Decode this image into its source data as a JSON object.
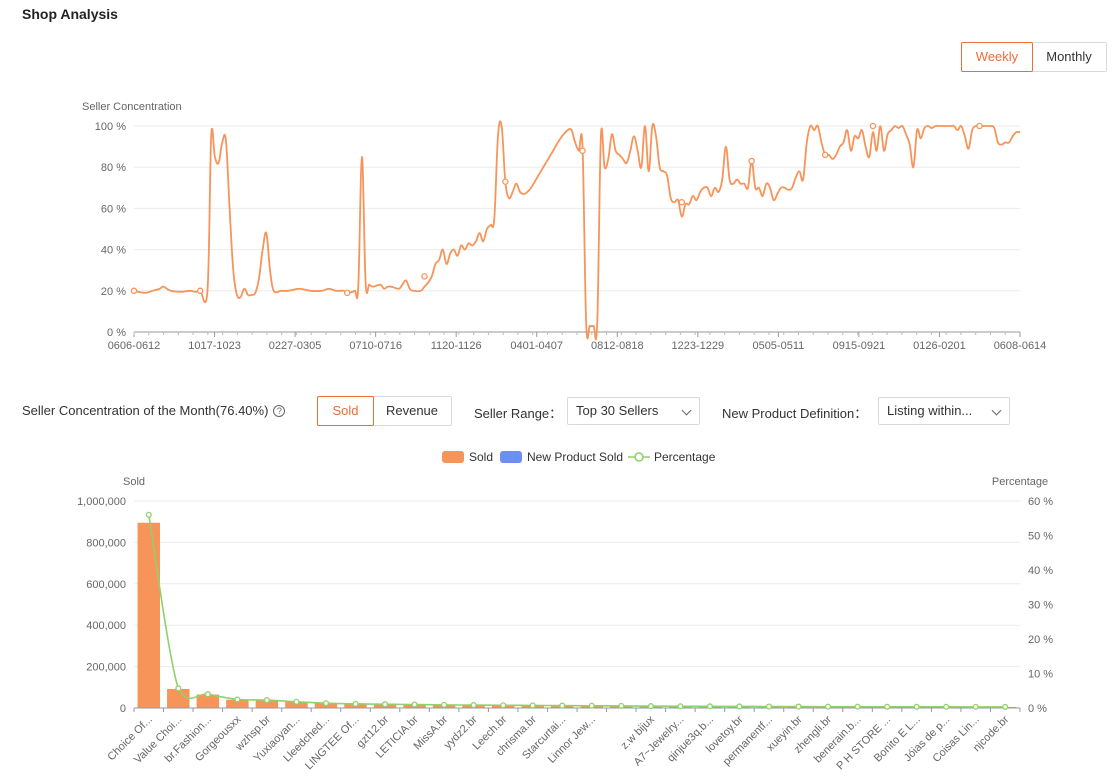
{
  "page": {
    "title": "Shop Analysis"
  },
  "period_toggle": {
    "weekly": "Weekly",
    "monthly": "Monthly",
    "selected": "Weekly"
  },
  "line_chart_block": {
    "chart_data": {
      "type": "line",
      "ylabel": "Seller Concentration",
      "ylim": [
        0,
        100
      ],
      "yticks": [
        "0 %",
        "20 %",
        "40 %",
        "60 %",
        "80 %",
        "100 %"
      ],
      "x_tick_labels": [
        "0606-0612",
        "1017-1023",
        "0227-0305",
        "0710-0716",
        "1120-1126",
        "0401-0407",
        "0812-0818",
        "1223-1229",
        "0505-0511",
        "0915-0921",
        "0126-0201",
        "0608-0614"
      ],
      "x_tick_positions": [
        0,
        19,
        38,
        57,
        76,
        95,
        114,
        133,
        152,
        171,
        190,
        209
      ],
      "x_count": 210,
      "color": "#f79459",
      "points": [
        [
          0,
          20
        ],
        [
          3,
          19
        ],
        [
          5,
          20
        ],
        [
          7,
          21
        ],
        [
          8,
          22
        ],
        [
          10,
          20
        ],
        [
          13,
          19.5
        ],
        [
          15,
          20
        ],
        [
          17,
          19.5
        ],
        [
          18,
          20
        ],
        [
          20,
          20.5
        ],
        [
          21,
          95
        ],
        [
          22,
          85
        ],
        [
          23,
          82
        ],
        [
          24,
          92
        ],
        [
          25,
          93
        ],
        [
          26,
          60
        ],
        [
          27,
          30
        ],
        [
          28,
          18
        ],
        [
          29,
          17
        ],
        [
          30,
          21
        ],
        [
          31,
          18
        ],
        [
          32,
          18
        ],
        [
          33,
          19
        ],
        [
          34,
          26
        ],
        [
          35,
          40
        ],
        [
          36,
          48
        ],
        [
          37,
          30
        ],
        [
          38,
          20
        ],
        [
          40,
          20
        ],
        [
          42,
          20
        ],
        [
          45,
          21
        ],
        [
          48,
          20
        ],
        [
          51,
          20
        ],
        [
          53,
          21
        ],
        [
          55,
          20
        ],
        [
          57,
          20
        ],
        [
          58,
          19
        ],
        [
          60,
          20
        ],
        [
          61,
          22
        ],
        [
          62,
          85
        ],
        [
          63,
          24
        ],
        [
          64,
          23
        ],
        [
          65,
          22
        ],
        [
          67,
          23
        ],
        [
          68,
          21
        ],
        [
          69,
          22
        ],
        [
          70,
          22
        ],
        [
          72,
          21
        ],
        [
          73,
          23
        ],
        [
          74,
          25
        ],
        [
          75,
          21
        ],
        [
          76,
          20
        ],
        [
          78,
          20
        ],
        [
          79,
          22
        ],
        [
          80,
          24
        ],
        [
          81,
          27
        ],
        [
          82,
          33
        ],
        [
          83,
          35
        ],
        [
          84,
          40
        ],
        [
          85,
          33
        ],
        [
          86,
          38
        ],
        [
          87,
          40
        ],
        [
          88,
          37
        ],
        [
          89,
          42
        ],
        [
          90,
          40
        ],
        [
          91,
          43
        ],
        [
          92,
          42
        ],
        [
          93,
          44
        ],
        [
          94,
          48
        ],
        [
          95,
          44
        ],
        [
          96,
          50
        ],
        [
          97,
          52
        ],
        [
          98,
          55
        ],
        [
          99,
          95
        ],
        [
          100,
          100
        ],
        [
          101,
          73
        ],
        [
          102,
          65
        ],
        [
          103,
          68
        ],
        [
          104,
          72
        ],
        [
          105,
          68
        ],
        [
          106,
          67
        ],
        [
          107,
          68
        ],
        [
          108,
          70
        ],
        [
          110,
          76
        ],
        [
          112,
          82
        ],
        [
          114,
          88
        ],
        [
          116,
          94
        ],
        [
          118,
          98
        ],
        [
          119,
          98
        ],
        [
          120,
          92
        ],
        [
          121,
          88
        ],
        [
          122,
          90
        ],
        [
          123,
          4
        ],
        [
          124,
          3
        ],
        [
          125,
          3
        ],
        [
          126,
          4
        ],
        [
          127,
          95
        ],
        [
          128,
          80
        ],
        [
          129,
          84
        ],
        [
          130,
          96
        ],
        [
          131,
          88
        ],
        [
          132,
          86
        ],
        [
          133,
          84
        ],
        [
          134,
          82
        ],
        [
          135,
          88
        ],
        [
          136,
          95
        ],
        [
          137,
          88
        ],
        [
          138,
          80
        ],
        [
          139,
          100
        ],
        [
          140,
          78
        ],
        [
          141,
          100
        ],
        [
          142,
          95
        ],
        [
          143,
          80
        ],
        [
          144,
          78
        ],
        [
          145,
          76
        ],
        [
          146,
          65
        ],
        [
          147,
          63
        ],
        [
          148,
          64
        ],
        [
          149,
          56
        ],
        [
          150,
          62
        ],
        [
          151,
          62
        ],
        [
          152,
          66
        ],
        [
          153,
          64
        ],
        [
          154,
          68
        ],
        [
          155,
          70
        ],
        [
          156,
          70
        ],
        [
          157,
          66
        ],
        [
          158,
          70
        ],
        [
          159,
          68
        ],
        [
          160,
          74
        ],
        [
          161,
          90
        ],
        [
          162,
          74
        ],
        [
          163,
          72
        ],
        [
          164,
          74
        ],
        [
          165,
          72
        ],
        [
          166,
          72
        ],
        [
          167,
          70
        ],
        [
          168,
          83
        ],
        [
          169,
          70
        ],
        [
          170,
          70
        ],
        [
          171,
          66
        ],
        [
          172,
          72
        ],
        [
          173,
          70
        ],
        [
          174,
          64
        ],
        [
          175,
          67
        ],
        [
          176,
          70
        ],
        [
          177,
          70
        ],
        [
          178,
          69
        ],
        [
          179,
          70
        ],
        [
          180,
          75
        ],
        [
          181,
          78
        ],
        [
          182,
          74
        ],
        [
          183,
          92
        ],
        [
          184,
          100
        ],
        [
          185,
          98
        ],
        [
          186,
          100
        ],
        [
          187,
          92
        ],
        [
          188,
          86
        ],
        [
          189,
          86
        ],
        [
          190,
          84
        ],
        [
          191,
          86
        ],
        [
          192,
          90
        ],
        [
          193,
          92
        ],
        [
          194,
          98
        ],
        [
          195,
          88
        ],
        [
          196,
          95
        ],
        [
          197,
          94
        ],
        [
          198,
          98
        ],
        [
          199,
          90
        ],
        [
          200,
          85
        ],
        [
          201,
          97
        ],
        [
          202,
          88
        ],
        [
          203,
          100
        ],
        [
          204,
          88
        ],
        [
          205,
          96
        ],
        [
          206,
          98
        ],
        [
          207,
          100
        ],
        [
          208,
          99
        ],
        [
          209,
          100
        ],
        [
          210,
          96
        ],
        [
          211,
          91
        ],
        [
          212,
          80
        ],
        [
          213,
          98
        ],
        [
          214,
          94
        ],
        [
          215,
          99
        ],
        [
          216,
          100
        ],
        [
          217,
          99
        ],
        [
          218,
          100
        ],
        [
          219,
          100
        ],
        [
          220,
          100
        ],
        [
          221,
          100
        ],
        [
          222,
          100
        ],
        [
          223,
          100
        ],
        [
          224,
          98
        ],
        [
          225,
          100
        ],
        [
          226,
          95
        ],
        [
          227,
          89
        ],
        [
          228,
          98
        ],
        [
          229,
          100
        ],
        [
          230,
          100
        ],
        [
          231,
          100
        ],
        [
          232,
          100
        ],
        [
          233,
          100
        ],
        [
          234,
          99
        ],
        [
          235,
          92
        ],
        [
          236,
          91
        ],
        [
          237,
          92
        ],
        [
          238,
          92
        ],
        [
          239,
          95
        ],
        [
          240,
          97
        ],
        [
          241,
          97
        ]
      ],
      "markers": [
        [
          0,
          20
        ],
        [
          18,
          20
        ],
        [
          58,
          19
        ],
        [
          79,
          27
        ],
        [
          101,
          73
        ],
        [
          122,
          88
        ],
        [
          149,
          63
        ],
        [
          168,
          83
        ],
        [
          188,
          86
        ],
        [
          201,
          100
        ],
        [
          230,
          100
        ]
      ]
    }
  },
  "controls": {
    "concentration_label": "Seller Concentration of the Month(76.40%)",
    "help_icon": "question-circle-icon",
    "metric_sold": "Sold",
    "metric_revenue": "Revenue",
    "metric_selected": "Sold",
    "range_label": "Seller Range：",
    "range_value": "Top 30 Sellers",
    "definition_label": "New Product Definition：",
    "definition_value": "Listing within..."
  },
  "bar_chart_block": {
    "chart_data": {
      "type": "bar",
      "ylabel": "Sold",
      "y2label": "Percentage",
      "ylim": [
        0,
        1000000
      ],
      "y2lim": [
        0,
        60
      ],
      "yticks": [
        "0",
        "200,000",
        "400,000",
        "600,000",
        "800,000",
        "1,000,000"
      ],
      "y2ticks": [
        "0 %",
        "10 %",
        "20 %",
        "30 %",
        "40 %",
        "50 %",
        "60 %"
      ],
      "legend": [
        {
          "name": "Sold",
          "color": "#f79459"
        },
        {
          "name": "New Product Sold",
          "color": "#6b8ff5"
        },
        {
          "name": "Percentage",
          "color": "#8fd16b"
        }
      ],
      "categories": [
        "Choice Of...",
        "Value Choi...",
        "br.Fashion...",
        "Gorgeousxx",
        "wzhsp.br",
        "Yuxiaoyan...",
        "Lleedched...",
        "LINGTEE Of...",
        "gzt12.br",
        "LETICIA.br",
        "MissA.br",
        "yydz2.br",
        "Leech.br",
        "chrisma.br",
        "Starcurtai...",
        "Linnor Jew...",
        "",
        "z.w bijux",
        "A7~Jewelry...",
        "qinjue3q.b...",
        "lovetoy.br",
        "permanentf...",
        "xueyin.br",
        "zhengli.br",
        "benerain.b...",
        "P H STORE ...",
        "Bonito E L...",
        "Jóias de p...",
        "Coisas Lin...",
        "njcode.br"
      ],
      "series": [
        {
          "name": "Sold",
          "values": [
            895000,
            92000,
            65000,
            40000,
            38000,
            30000,
            22000,
            20000,
            18000,
            16000,
            15000,
            14000,
            13000,
            12000,
            11000,
            10000,
            9000,
            8500,
            8000,
            7500,
            7000,
            6800,
            6500,
            6200,
            6000,
            5800,
            5600,
            5400,
            5200,
            5000
          ]
        },
        {
          "name": "New Product Sold",
          "values": [
            0,
            0,
            0,
            0,
            0,
            0,
            0,
            0,
            0,
            0,
            0,
            0,
            0,
            0,
            0,
            0,
            0,
            0,
            0,
            0,
            0,
            0,
            0,
            0,
            0,
            0,
            0,
            0,
            0,
            0
          ]
        },
        {
          "name": "Percentage",
          "values": [
            56.0,
            5.7,
            4.0,
            2.5,
            2.3,
            1.8,
            1.4,
            1.2,
            1.1,
            1.0,
            0.9,
            0.85,
            0.8,
            0.75,
            0.7,
            0.65,
            0.6,
            0.55,
            0.5,
            0.48,
            0.45,
            0.43,
            0.41,
            0.39,
            0.37,
            0.35,
            0.34,
            0.33,
            0.32,
            0.31
          ]
        }
      ]
    }
  }
}
